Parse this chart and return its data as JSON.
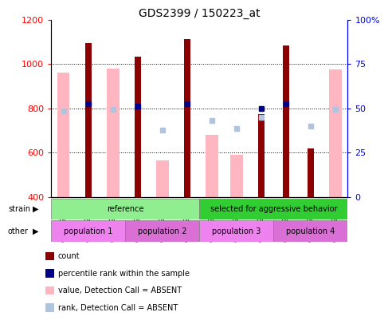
{
  "title": "GDS2399 / 150223_at",
  "samples": [
    "GSM120863",
    "GSM120864",
    "GSM120865",
    "GSM120866",
    "GSM120867",
    "GSM120868",
    "GSM120838",
    "GSM120858",
    "GSM120859",
    "GSM120860",
    "GSM120861",
    "GSM120862"
  ],
  "count_values": [
    null,
    1095,
    null,
    1035,
    null,
    1115,
    null,
    null,
    775,
    1085,
    620,
    null
  ],
  "absent_value_bars": [
    960,
    null,
    980,
    null,
    565,
    null,
    680,
    590,
    null,
    null,
    null,
    975
  ],
  "percentile_rank": [
    null,
    820,
    null,
    810,
    null,
    820,
    null,
    null,
    800,
    820,
    null,
    null
  ],
  "absent_rank_dots": [
    790,
    null,
    795,
    null,
    700,
    null,
    745,
    710,
    760,
    null,
    720,
    795
  ],
  "ylim_left": [
    400,
    1200
  ],
  "ylim_right": [
    0,
    100
  ],
  "yticks_left": [
    400,
    600,
    800,
    1000,
    1200
  ],
  "yticks_right": [
    0,
    25,
    50,
    75,
    100
  ],
  "strain_groups": [
    {
      "label": "reference",
      "start": 0,
      "end": 6,
      "color": "#90ee90"
    },
    {
      "label": "selected for aggressive behavior",
      "start": 6,
      "end": 12,
      "color": "#32cd32"
    }
  ],
  "population_groups": [
    {
      "label": "population 1",
      "start": 0,
      "end": 3,
      "color": "#ee82ee"
    },
    {
      "label": "population 2",
      "start": 3,
      "end": 6,
      "color": "#da70d6"
    },
    {
      "label": "population 3",
      "start": 6,
      "end": 9,
      "color": "#ee82ee"
    },
    {
      "label": "population 4",
      "start": 9,
      "end": 12,
      "color": "#da70d6"
    }
  ],
  "count_color": "#8b0000",
  "absent_value_color": "#ffb6c1",
  "percentile_rank_color": "#00008b",
  "absent_rank_color": "#b0c4de",
  "absent_bar_width": 0.5,
  "count_bar_width": 0.25,
  "dot_size": 5,
  "grid_lines": [
    600,
    800,
    1000
  ]
}
